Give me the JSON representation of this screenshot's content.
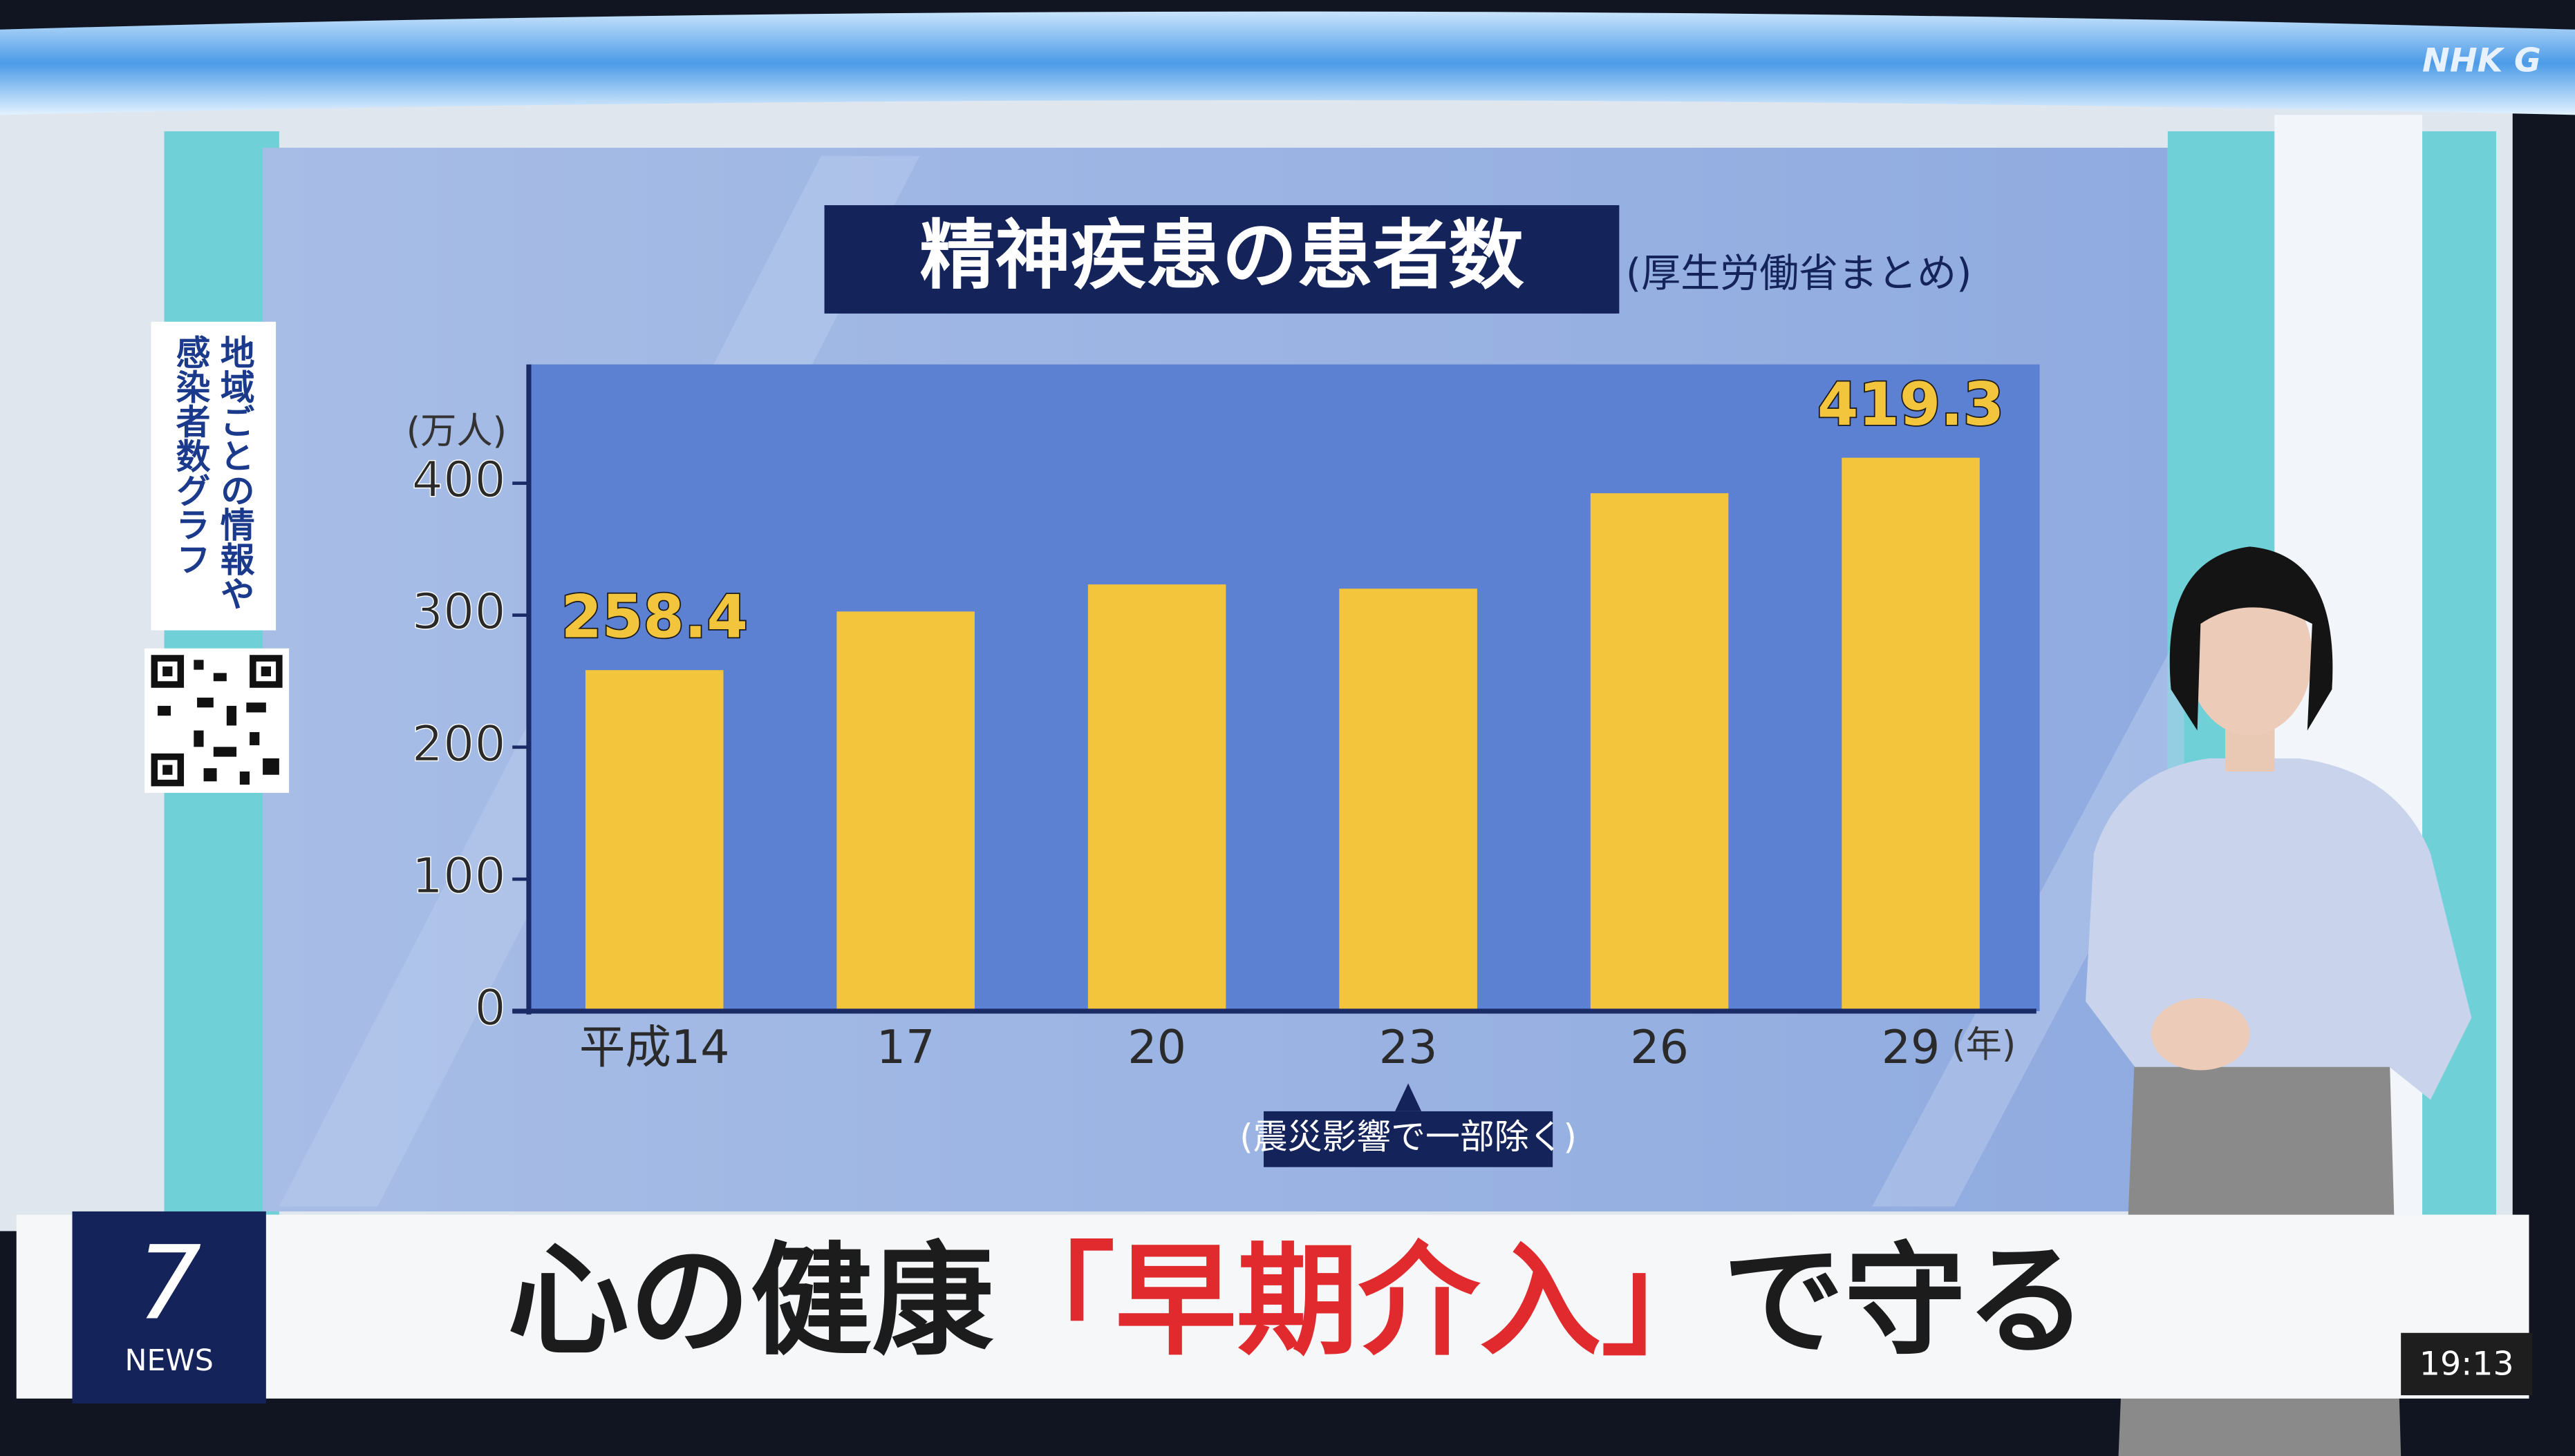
{
  "chart_data": {
    "type": "bar",
    "title": "精神疾患の患者数",
    "subtitle": "(厚生労働省まとめ)",
    "y_label": "(万人)",
    "x_label": "(年)",
    "categories": [
      "平成14",
      "17",
      "20",
      "23",
      "26",
      "29"
    ],
    "values": [
      258.4,
      302.8,
      323.3,
      320.1,
      392.4,
      419.3
    ],
    "value_labels": [
      "258.4",
      null,
      null,
      null,
      null,
      "419.3"
    ],
    "color": "#f2c53c",
    "ylim": [
      0,
      490
    ],
    "yticks": [
      0,
      100,
      200,
      300,
      400
    ],
    "annotations": [
      {
        "category": 3,
        "text": "(震災影響で一部除く)"
      }
    ]
  },
  "broadcast": {
    "logo": "NHK G",
    "side_note": [
      "地域ごとの情報や",
      "感染者数グラフ"
    ],
    "program": {
      "number": "7",
      "name": "NEWS"
    },
    "headline": [
      {
        "text": "心の健康",
        "color": "#1c1c1c"
      },
      {
        "text": "「早期介入」",
        "color": "#e02a2e"
      },
      {
        "text": "で守る",
        "color": "#1c1c1c"
      }
    ],
    "clock": "19:13"
  }
}
